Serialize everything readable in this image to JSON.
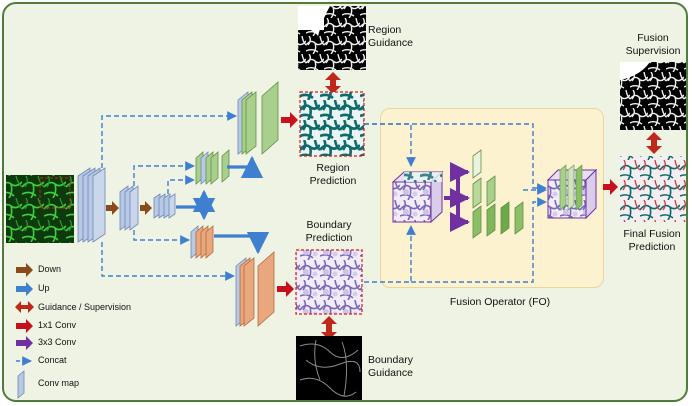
{
  "labels": {
    "region_guidance": [
      "Region",
      "Guidance"
    ],
    "region_prediction": [
      "Region",
      "Prediction"
    ],
    "boundary_prediction": [
      "Boundary",
      "Prediction"
    ],
    "boundary_guidance": [
      "Boundary",
      "Guidance"
    ],
    "fusion_supervision": [
      "Fusion",
      "Supervision"
    ],
    "final_fusion_prediction": [
      "Final Fusion",
      "Prediction"
    ],
    "fusion_operator": "Fusion Operator (FO)"
  },
  "legend": [
    {
      "label": "Down",
      "icon": "brown-arrow-icon",
      "color": "#8b4a1c"
    },
    {
      "label": "Up",
      "icon": "blue-arrow-icon",
      "color": "#3f7fd0"
    },
    {
      "label": "Guidance / Supervision",
      "icon": "double-arrow-icon",
      "color": "#c0281c"
    },
    {
      "label": "1x1 Conv",
      "icon": "red-arrow-icon",
      "color": "#c8101c"
    },
    {
      "label": "3x3 Conv",
      "icon": "purple-arrow-icon",
      "color": "#7030a0"
    },
    {
      "label": "Concat",
      "icon": "dashed-arrow-icon",
      "color": "#3f7fd0"
    },
    {
      "label": "Conv map",
      "icon": "conv-map-icon",
      "color": "#b8c9e6"
    }
  ],
  "colors": {
    "panel_bg": "#eef3e4",
    "panel_border": "#4f7d3c",
    "fo_bg": "#fcf2cf",
    "encoder": "#b8c9e6",
    "region_branch": "#a9cf8c",
    "boundary_branch": "#e9a77d",
    "concat": "#3f7fd0",
    "prediction_border": "#d21e1e"
  }
}
